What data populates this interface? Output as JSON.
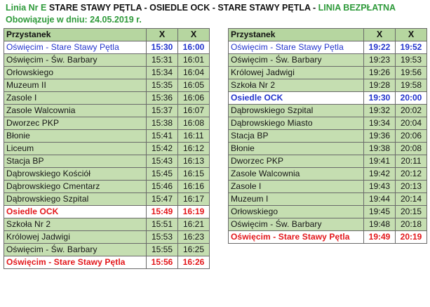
{
  "header": {
    "line_label": "Linia Nr E",
    "route": "STARE STAWY PĘTLA - OSIEDLE OCK - STARE STAWY PĘTLA -",
    "free_label": "LINIA BEZPŁATNA",
    "valid_from": "Obowiązuje w dniu: 24.05.2019 r."
  },
  "colors": {
    "green": "#2e9a3a",
    "blue": "#2233cc",
    "red": "#e3171b",
    "cell_green": "#c5deb1",
    "header_green": "#b6d6a0"
  },
  "left_table": {
    "header": {
      "stop": "Przystanek",
      "col1": "X",
      "col2": "X"
    },
    "rows": [
      {
        "stop": "Oświęcim - Stare Stawy Pętla",
        "t1": "15:30",
        "t2": "16:00",
        "style": "blue"
      },
      {
        "stop": "Oświęcim - Św. Barbary",
        "t1": "15:31",
        "t2": "16:01",
        "style": "norm"
      },
      {
        "stop": "Orłowskiego",
        "t1": "15:34",
        "t2": "16:04",
        "style": "norm"
      },
      {
        "stop": "Muzeum II",
        "t1": "15:35",
        "t2": "16:05",
        "style": "norm"
      },
      {
        "stop": "Zasole I",
        "t1": "15:36",
        "t2": "16:06",
        "style": "norm"
      },
      {
        "stop": "Zasole Walcownia",
        "t1": "15:37",
        "t2": "16:07",
        "style": "norm"
      },
      {
        "stop": "Dworzec PKP",
        "t1": "15:38",
        "t2": "16:08",
        "style": "norm"
      },
      {
        "stop": "Błonie",
        "t1": "15:41",
        "t2": "16:11",
        "style": "norm"
      },
      {
        "stop": "Liceum",
        "t1": "15:42",
        "t2": "16:12",
        "style": "norm"
      },
      {
        "stop": "Stacja BP",
        "t1": "15:43",
        "t2": "16:13",
        "style": "norm"
      },
      {
        "stop": "Dąbrowskiego Kościół",
        "t1": "15:45",
        "t2": "16:15",
        "style": "norm"
      },
      {
        "stop": "Dąbrowskiego Cmentarz",
        "t1": "15:46",
        "t2": "16:16",
        "style": "norm"
      },
      {
        "stop": "Dąbrowskiego Szpital",
        "t1": "15:47",
        "t2": "16:17",
        "style": "norm"
      },
      {
        "stop": "Osiedle OCK",
        "t1": "15:49",
        "t2": "16:19",
        "style": "red"
      },
      {
        "stop": "Szkoła Nr 2",
        "t1": "15:51",
        "t2": "16:21",
        "style": "norm"
      },
      {
        "stop": "Królowej Jadwigi",
        "t1": "15:53",
        "t2": "16:23",
        "style": "norm"
      },
      {
        "stop": "Oświęcim - Św. Barbary",
        "t1": "15:55",
        "t2": "16:25",
        "style": "norm"
      },
      {
        "stop": "Oświęcim - Stare Stawy Pętla",
        "t1": "15:56",
        "t2": "16:26",
        "style": "red"
      }
    ]
  },
  "right_table": {
    "header": {
      "stop": "Przystanek",
      "col1": "X",
      "col2": "X"
    },
    "rows": [
      {
        "stop": "Oświęcim - Stare Stawy Pętla",
        "t1": "19:22",
        "t2": "19:52",
        "style": "blue-plain"
      },
      {
        "stop": "Oświęcim - Św. Barbary",
        "t1": "19:23",
        "t2": "19:53",
        "style": "norm"
      },
      {
        "stop": "Królowej Jadwigi",
        "t1": "19:26",
        "t2": "19:56",
        "style": "norm"
      },
      {
        "stop": "Szkoła Nr 2",
        "t1": "19:28",
        "t2": "19:58",
        "style": "norm"
      },
      {
        "stop": "Osiedle OCK",
        "t1": "19:30",
        "t2": "20:00",
        "style": "blue-bold"
      },
      {
        "stop": "Dąbrowskiego Szpital",
        "t1": "19:32",
        "t2": "20:02",
        "style": "norm"
      },
      {
        "stop": "Dąbrowskiego Miasto",
        "t1": "19:34",
        "t2": "20:04",
        "style": "norm"
      },
      {
        "stop": "Stacja BP",
        "t1": "19:36",
        "t2": "20:06",
        "style": "norm"
      },
      {
        "stop": "Błonie",
        "t1": "19:38",
        "t2": "20:08",
        "style": "norm"
      },
      {
        "stop": "Dworzec PKP",
        "t1": "19:41",
        "t2": "20:11",
        "style": "norm"
      },
      {
        "stop": "Zasole Walcownia",
        "t1": "19:42",
        "t2": "20:12",
        "style": "norm"
      },
      {
        "stop": "Zasole I",
        "t1": "19:43",
        "t2": "20:13",
        "style": "norm"
      },
      {
        "stop": "Muzeum I",
        "t1": "19:44",
        "t2": "20:14",
        "style": "norm"
      },
      {
        "stop": "Orłowskiego",
        "t1": "19:45",
        "t2": "20:15",
        "style": "norm"
      },
      {
        "stop": "Oświęcim - Św. Barbary",
        "t1": "19:48",
        "t2": "20:18",
        "style": "norm"
      },
      {
        "stop": "Oświęcim - Stare Stawy Pętla",
        "t1": "19:49",
        "t2": "20:19",
        "style": "red"
      }
    ]
  }
}
